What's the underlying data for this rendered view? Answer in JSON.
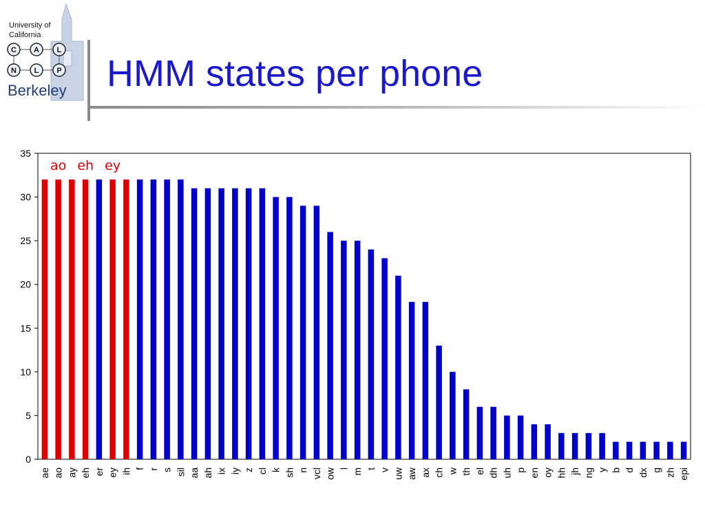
{
  "logo": {
    "line1": "University of",
    "line2": "California",
    "nodes": [
      "C",
      "A",
      "L",
      "N",
      "L",
      "P"
    ],
    "wordmark": "Berkeley"
  },
  "title": "HMM states per phone",
  "colors": {
    "highlight": "#dd0000",
    "default": "#0000cc",
    "title": "#1a1acc"
  },
  "chart_data": {
    "type": "bar",
    "categories": [
      "ae",
      "ao",
      "ay",
      "eh",
      "er",
      "ey",
      "ih",
      "f",
      "r",
      "s",
      "sil",
      "aa",
      "ah",
      "ix",
      "iy",
      "z",
      "cl",
      "k",
      "sh",
      "n",
      "vcl",
      "ow",
      "l",
      "m",
      "t",
      "v",
      "uw",
      "aw",
      "ax",
      "ch",
      "w",
      "th",
      "el",
      "dh",
      "uh",
      "p",
      "en",
      "oy",
      "hh",
      "jh",
      "ng",
      "y",
      "b",
      "d",
      "dx",
      "g",
      "zh",
      "epi"
    ],
    "values": [
      32,
      32,
      32,
      32,
      32,
      32,
      32,
      32,
      32,
      32,
      32,
      31,
      31,
      31,
      31,
      31,
      31,
      30,
      30,
      29,
      29,
      26,
      25,
      25,
      24,
      23,
      21,
      18,
      18,
      13,
      10,
      8,
      6,
      6,
      5,
      5,
      4,
      4,
      3,
      3,
      3,
      3,
      2,
      2,
      2,
      2,
      2,
      2
    ],
    "highlighted": [
      "ae",
      "ao",
      "ay",
      "eh",
      "ey",
      "ih"
    ],
    "annotations": [
      "ao",
      "eh",
      "ey"
    ],
    "ylim": [
      0,
      35
    ],
    "yticks": [
      0,
      5,
      10,
      15,
      20,
      25,
      30,
      35
    ],
    "xlabel": "",
    "ylabel": "",
    "grid": false,
    "legend": "none"
  }
}
